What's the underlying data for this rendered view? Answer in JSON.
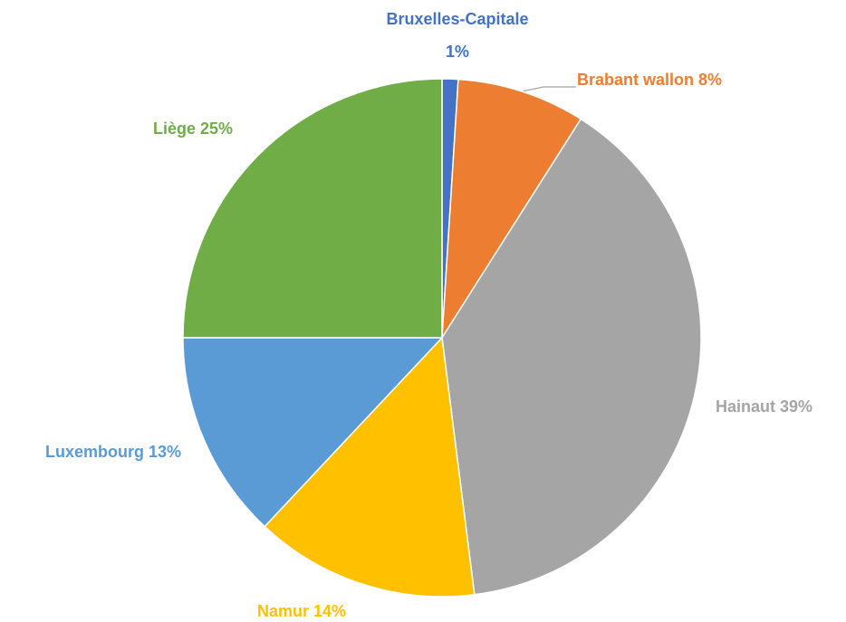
{
  "chart_data": {
    "type": "pie",
    "categories": [
      "Bruxelles-Capitale",
      "Brabant wallon",
      "Hainaut",
      "Namur",
      "Luxembourg",
      "Liège"
    ],
    "values": [
      1,
      8,
      39,
      14,
      13,
      25
    ],
    "value_labels": [
      "1%",
      "8%",
      "39%",
      "14%",
      "13%",
      "25%"
    ],
    "colors": [
      "#4472c4",
      "#ed7d31",
      "#a5a5a5",
      "#ffc000",
      "#5b9bd5",
      "#70ad47"
    ]
  }
}
